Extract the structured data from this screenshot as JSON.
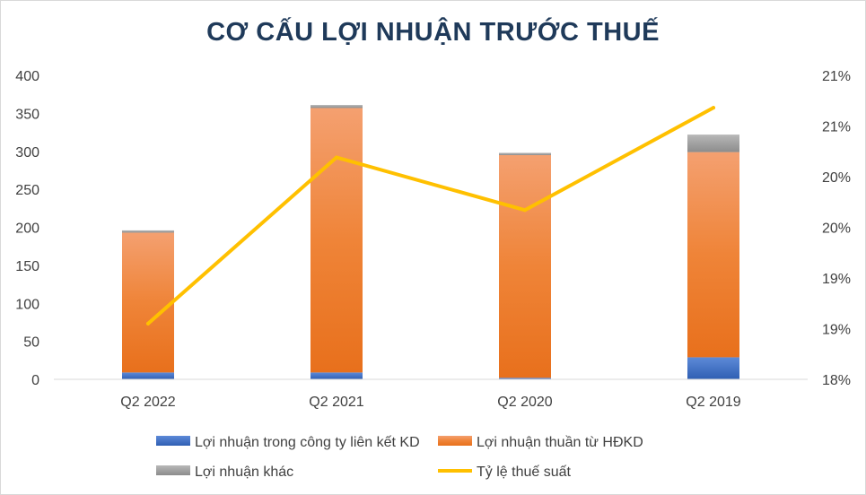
{
  "chart_data": {
    "type": "bar",
    "stacked": true,
    "title": "CƠ CẤU LỢI NHUẬN TRƯỚC THUẾ",
    "categories": [
      "Q2 2022",
      "Q2 2021",
      "Q2 2020",
      "Q2 2019"
    ],
    "series": [
      {
        "name": "Lợi nhuận trong công ty liên kết KD",
        "kind": "bar",
        "axis": "left",
        "color": "#4472c4",
        "values": [
          9,
          9,
          2,
          29
        ]
      },
      {
        "name": "Lợi nhuận thuần từ HĐKD",
        "kind": "bar",
        "axis": "left",
        "color": "#ed7d31",
        "values": [
          184,
          348,
          293,
          270
        ]
      },
      {
        "name": "Lợi nhuận khác",
        "kind": "bar",
        "axis": "left",
        "color": "#a5a5a5",
        "values": [
          3,
          4,
          3,
          23
        ]
      },
      {
        "name": "Tỷ lệ thuế suất",
        "kind": "line",
        "axis": "right",
        "color": "#ffc000",
        "values": [
          18.55,
          20.19,
          19.67,
          20.68
        ]
      }
    ],
    "y_left": {
      "ylim": [
        0,
        400
      ],
      "ticks": [
        "0",
        "50",
        "100",
        "150",
        "200",
        "250",
        "300",
        "350",
        "400"
      ]
    },
    "y_right": {
      "ylim": [
        18,
        21
      ],
      "ticks": [
        "18%",
        "19%",
        "19%",
        "20%",
        "20%",
        "21%",
        "21%"
      ]
    },
    "legend_position": "bottom",
    "grid": false
  }
}
